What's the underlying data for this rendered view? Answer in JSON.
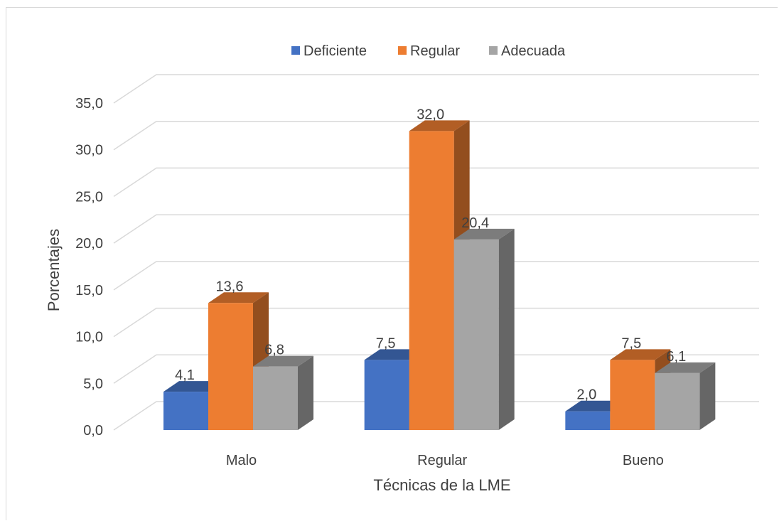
{
  "chart_data": {
    "type": "bar",
    "style": "3d-clustered-column",
    "categories": [
      "Malo",
      "Regular",
      "Bueno"
    ],
    "series": [
      {
        "name": "Deficiente",
        "values": [
          4.1,
          7.5,
          2.0
        ],
        "color": "#4472C4",
        "label_values": [
          "4,1",
          "7,5",
          "2,0"
        ]
      },
      {
        "name": "Regular",
        "values": [
          13.6,
          32.0,
          7.5
        ],
        "color": "#ED7D31",
        "label_values": [
          "13,6",
          "32,0",
          "7,5"
        ]
      },
      {
        "name": "Adecuada",
        "values": [
          6.8,
          20.4,
          6.1
        ],
        "color": "#A5A5A5",
        "label_values": [
          "6,8",
          "20,4",
          "6,1"
        ]
      }
    ],
    "xlabel": "Técnicas de la LME",
    "ylabel": "Porcentajes",
    "ylim": [
      0,
      35
    ],
    "yticks": [
      "0,0",
      "5,0",
      "10,0",
      "15,0",
      "20,0",
      "25,0",
      "30,0",
      "35,0"
    ],
    "grid": true,
    "legend_position": "top"
  }
}
